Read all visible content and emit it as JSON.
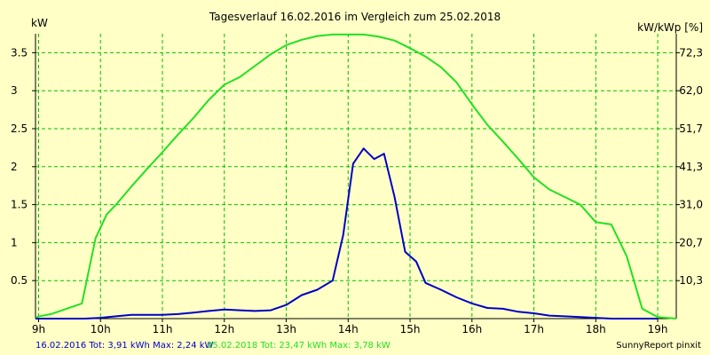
{
  "chart_data": {
    "type": "line",
    "title": "Tagesverlauf 16.02.2016 im Vergleich zum 25.02.2018",
    "y_left_unit": "kW",
    "y_right_unit": "kW/kWp [%]",
    "x_ticks": [
      "9h",
      "10h",
      "11h",
      "12h",
      "13h",
      "14h",
      "15h",
      "16h",
      "17h",
      "18h",
      "19h"
    ],
    "x_tick_hours": [
      9,
      10,
      11,
      12,
      13,
      14,
      15,
      16,
      17,
      18,
      19
    ],
    "xlim": [
      8.95,
      19.3
    ],
    "ylim": [
      0,
      3.75
    ],
    "y_left_ticks": [
      0.5,
      1,
      1.5,
      2,
      2.5,
      3,
      3.5
    ],
    "y_left_tick_labels": [
      "0.5",
      "1",
      "1.5",
      "2",
      "2.5",
      "3",
      "3.5"
    ],
    "y_right_ticks": [
      0.5,
      1,
      1.5,
      2,
      2.5,
      3,
      3.5
    ],
    "y_right_tick_labels": [
      "10,3",
      "20,7",
      "31,0",
      "41,3",
      "51,7",
      "62,0",
      "72,3"
    ],
    "grid": true,
    "colors": {
      "background": "#ffffc6",
      "grid": "#00c000",
      "axis": "#000000",
      "series_2016": "#0000c8",
      "series_2018": "#22e022"
    },
    "series": [
      {
        "name": "16.02.2016",
        "color": "#0000c8",
        "x": [
          8.95,
          9.25,
          9.5,
          9.75,
          10.0,
          10.25,
          10.5,
          10.75,
          11.0,
          11.25,
          11.5,
          11.75,
          12.0,
          12.25,
          12.5,
          12.75,
          13.0,
          13.25,
          13.5,
          13.75,
          13.92,
          14.08,
          14.25,
          14.42,
          14.58,
          14.75,
          14.92,
          15.1,
          15.25,
          15.5,
          15.75,
          16.0,
          16.25,
          16.5,
          16.75,
          17.0,
          17.25,
          17.5,
          17.75,
          18.0,
          18.25,
          18.5,
          18.75,
          19.0
        ],
        "values": [
          0.0,
          0.0,
          0.0,
          0.0,
          0.01,
          0.03,
          0.05,
          0.05,
          0.05,
          0.06,
          0.08,
          0.1,
          0.12,
          0.11,
          0.1,
          0.11,
          0.18,
          0.31,
          0.38,
          0.5,
          1.1,
          2.04,
          2.24,
          2.1,
          2.17,
          1.6,
          0.88,
          0.75,
          0.47,
          0.38,
          0.28,
          0.2,
          0.14,
          0.13,
          0.09,
          0.07,
          0.04,
          0.03,
          0.02,
          0.01,
          0.0,
          0.0,
          0.0,
          0.0
        ]
      },
      {
        "name": "25.02.2018",
        "color": "#22e022",
        "x": [
          8.95,
          9.2,
          9.45,
          9.7,
          9.92,
          10.1,
          10.25,
          10.5,
          10.75,
          11.0,
          11.25,
          11.5,
          11.75,
          12.0,
          12.25,
          12.5,
          12.75,
          13.0,
          13.25,
          13.5,
          13.75,
          14.0,
          14.25,
          14.5,
          14.75,
          15.0,
          15.25,
          15.5,
          15.75,
          16.0,
          16.25,
          16.5,
          16.75,
          17.0,
          17.25,
          17.5,
          17.75,
          18.0,
          18.25,
          18.5,
          18.75,
          19.0,
          19.3
        ],
        "values": [
          0.02,
          0.06,
          0.13,
          0.2,
          1.06,
          1.37,
          1.5,
          1.74,
          1.97,
          2.19,
          2.42,
          2.64,
          2.88,
          3.08,
          3.18,
          3.33,
          3.48,
          3.6,
          3.67,
          3.72,
          3.74,
          3.74,
          3.74,
          3.71,
          3.66,
          3.56,
          3.45,
          3.31,
          3.11,
          2.82,
          2.55,
          2.33,
          2.1,
          1.86,
          1.7,
          1.6,
          1.5,
          1.27,
          1.24,
          0.82,
          0.13,
          0.02,
          0.0
        ]
      }
    ],
    "footer": {
      "series_2016_text": "16.02.2016 Tot: 3,91 kWh Max: 2,24 kW",
      "series_2018_text": "25.02.2018 Tot: 23,47 kWh Max: 3,78 kW",
      "credit": "SunnyReport pinxit"
    }
  }
}
